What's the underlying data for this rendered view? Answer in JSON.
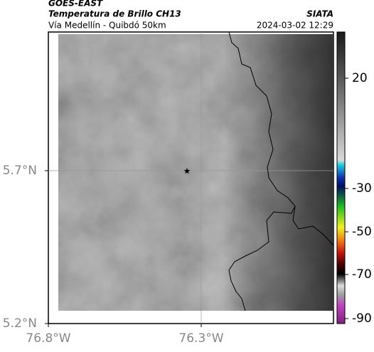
{
  "header": {
    "satellite": "GOES-EAST",
    "product": "Temperatura de Brillo CH13",
    "location": "Vía Medellín - Quibdó 50km",
    "agency": "SIATA",
    "datetime": "2024-03-02 12:29"
  },
  "map": {
    "lat_labels": [
      "5.7°N",
      "5.2°N"
    ],
    "lon_labels": [
      "76.8°W",
      "76.3°W"
    ]
  },
  "colorbar": {
    "ticks": [
      20,
      -30,
      -50,
      -70,
      -90
    ]
  }
}
